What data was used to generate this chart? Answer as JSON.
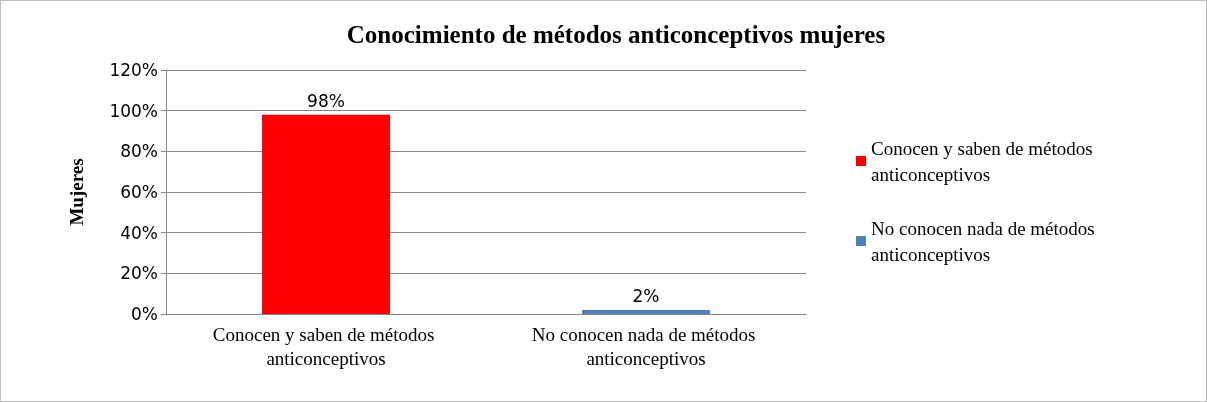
{
  "chart_data": {
    "type": "bar",
    "title": "Conocimiento de métodos anticonceptivos mujeres",
    "ylabel": "Mujeres",
    "categories": [
      "Conocen y saben de métodos anticonceptivos",
      "No conocen nada de métodos anticonceptivos"
    ],
    "series": [
      {
        "name": "Conocen y saben de métodos anticonceptivos",
        "color": "#ff0000",
        "values": [
          98,
          null
        ],
        "value_labels": [
          "98%",
          null
        ]
      },
      {
        "name": "No conocen nada de métodos anticonceptivos",
        "color": "#4f81bd",
        "values": [
          null,
          2
        ],
        "value_labels": [
          null,
          "2%"
        ]
      }
    ],
    "ylim": [
      0,
      120
    ],
    "yticks": [
      {
        "value": 0,
        "label": "0%"
      },
      {
        "value": 20,
        "label": "20%"
      },
      {
        "value": 40,
        "label": "40%"
      },
      {
        "value": 60,
        "label": "60%"
      },
      {
        "value": 80,
        "label": "80%"
      },
      {
        "value": 100,
        "label": "100%"
      },
      {
        "value": 120,
        "label": "120%"
      }
    ],
    "grid": "y",
    "legend": "right"
  }
}
